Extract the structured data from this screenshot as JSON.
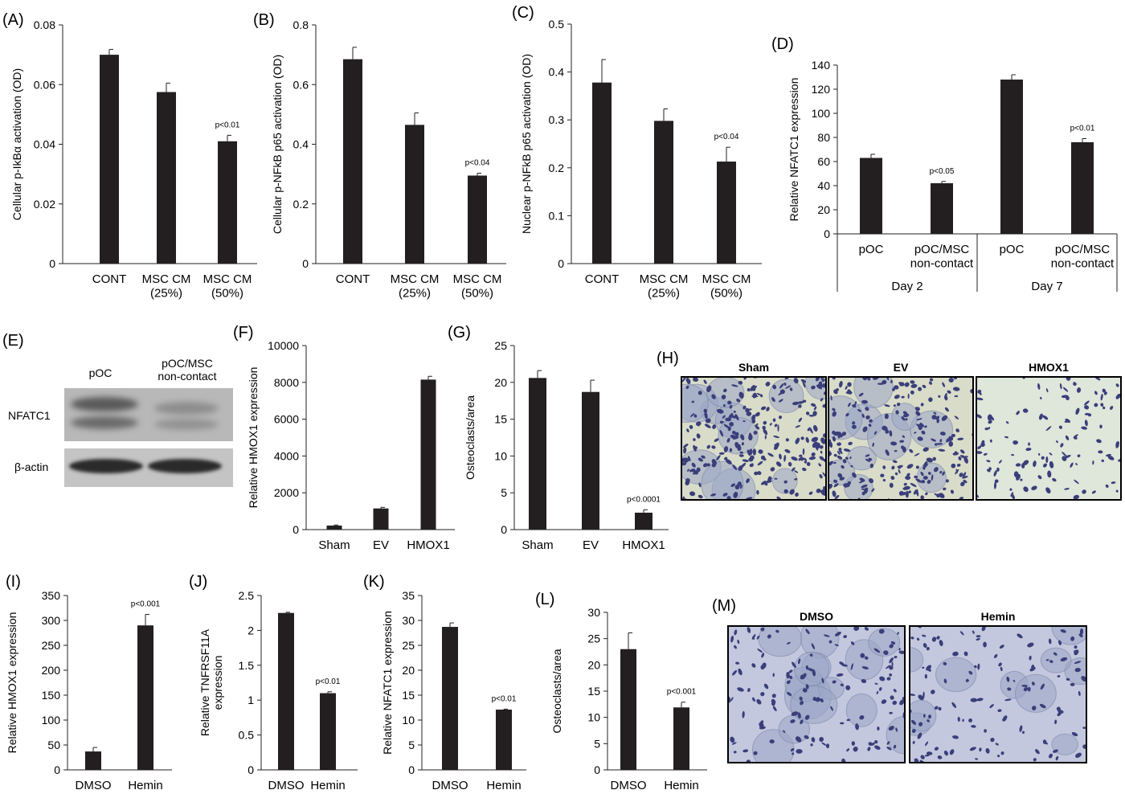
{
  "colors": {
    "bar": "#231f20",
    "axis": "#222222",
    "stain_bg_h": "#d9dcc9",
    "stain_bg_m": "#c3c8de",
    "cell": "#3a3f7a",
    "blot_bg": "#b8b8b8",
    "band": "#2b2b2b"
  },
  "chart_data": [
    {
      "panel": "(A)",
      "type": "bar",
      "ylabel": "Cellular p-IkBα activation (OD)",
      "ylim": [
        0,
        0.08
      ],
      "yticks": [
        "0",
        "0.02",
        "0.04",
        "0.06",
        "0.08"
      ],
      "categories": [
        "CONT",
        "MSC CM\n(25%)",
        "MSC CM\n(50%)"
      ],
      "values": [
        0.07,
        0.0575,
        0.041
      ],
      "errors": [
        0.0018,
        0.003,
        0.002
      ],
      "annotations": [
        {
          "index": 2,
          "text": "p<0.01"
        }
      ]
    },
    {
      "panel": "(B)",
      "type": "bar",
      "ylabel": "Cellular p-NFkB p65 activation (OD)",
      "ylim": [
        0,
        0.8
      ],
      "yticks": [
        "0",
        "0.2",
        "0.4",
        "0.6",
        "0.8"
      ],
      "categories": [
        "CONT",
        "MSC CM\n(25%)",
        "MSC CM\n(50%)"
      ],
      "values": [
        0.685,
        0.465,
        0.295
      ],
      "errors": [
        0.04,
        0.04,
        0.008
      ],
      "annotations": [
        {
          "index": 2,
          "text": "p<0.04"
        }
      ]
    },
    {
      "panel": "(C)",
      "type": "bar",
      "ylabel": "Nuclear p-NFkB p65 activation (OD)",
      "ylim": [
        0,
        0.5
      ],
      "yticks": [
        "0",
        "0.1",
        "0.2",
        "0.3",
        "0.4",
        "0.5"
      ],
      "categories": [
        "CONT",
        "MSC CM\n(25%)",
        "MSC CM\n(50%)"
      ],
      "values": [
        0.378,
        0.298,
        0.213
      ],
      "errors": [
        0.048,
        0.025,
        0.03
      ],
      "annotations": [
        {
          "index": 2,
          "text": "p<0.04"
        }
      ]
    },
    {
      "panel": "(D)",
      "type": "bar",
      "ylabel": "Relative NFATC1 expression",
      "ylim": [
        0,
        140
      ],
      "yticks": [
        "0",
        "20",
        "40",
        "60",
        "80",
        "100",
        "120",
        "140"
      ],
      "categories": [
        "pOC",
        "pOC/MSC\nnon-contact",
        "pOC",
        "pOC/MSC\nnon-contact"
      ],
      "groups": [
        "Day 2",
        "Day 7"
      ],
      "values": [
        63,
        42,
        128,
        76
      ],
      "errors": [
        3,
        1.5,
        4,
        3
      ],
      "annotations": [
        {
          "index": 1,
          "text": "p<0.05"
        },
        {
          "index": 3,
          "text": "p<0.01"
        }
      ]
    },
    {
      "panel": "(F)",
      "type": "bar",
      "ylabel": "Relative HMOX1 expression",
      "ylim": [
        0,
        10000
      ],
      "yticks": [
        "0",
        "2000",
        "4000",
        "6000",
        "8000",
        "10000"
      ],
      "categories": [
        "Sham",
        "EV",
        "HMOX1"
      ],
      "values": [
        220,
        1150,
        8150
      ],
      "errors": [
        30,
        60,
        180
      ],
      "annotations": []
    },
    {
      "panel": "(G)",
      "type": "bar",
      "ylabel": "Osteoclasts/area",
      "ylim": [
        0,
        25
      ],
      "yticks": [
        "0",
        "5",
        "10",
        "15",
        "20",
        "25"
      ],
      "categories": [
        "Sham",
        "EV",
        "HMOX1"
      ],
      "values": [
        20.6,
        18.7,
        2.3
      ],
      "errors": [
        1.0,
        1.6,
        0.4
      ],
      "annotations": [
        {
          "index": 2,
          "text": "p<0.0001"
        }
      ]
    },
    {
      "panel": "(I)",
      "type": "bar",
      "ylabel": "Relative HMOX1 expression",
      "ylim": [
        0,
        350
      ],
      "yticks": [
        "0",
        "50",
        "100",
        "150",
        "200",
        "250",
        "300",
        "350"
      ],
      "categories": [
        "DMSO",
        "Hemin"
      ],
      "values": [
        37,
        290
      ],
      "errors": [
        8,
        22
      ],
      "annotations": [
        {
          "index": 1,
          "text": "p<0.001"
        }
      ]
    },
    {
      "panel": "(J)",
      "type": "bar",
      "ylabel": "Relative TNFRSF11A\nexpression",
      "ylim": [
        0,
        2.5
      ],
      "yticks": [
        "0",
        "0.5",
        "1",
        "1.5",
        "2",
        "2.5"
      ],
      "categories": [
        "DMSO",
        "Hemin"
      ],
      "values": [
        2.25,
        1.1
      ],
      "errors": [
        0.01,
        0.02
      ],
      "annotations": [
        {
          "index": 1,
          "text": "p<0.01"
        }
      ]
    },
    {
      "panel": "(K)",
      "type": "bar",
      "ylabel": "Relative NFATC1 expression",
      "ylim": [
        0,
        35
      ],
      "yticks": [
        "0",
        "5",
        "10",
        "15",
        "20",
        "25",
        "30",
        "35"
      ],
      "categories": [
        "DMSO",
        "Hemin"
      ],
      "values": [
        28.7,
        12.1
      ],
      "errors": [
        0.8,
        0.1
      ],
      "annotations": [
        {
          "index": 1,
          "text": "p<0.01"
        }
      ]
    },
    {
      "panel": "(L)",
      "type": "bar",
      "ylabel": "Osteoclasts/area",
      "ylim": [
        0,
        30
      ],
      "yticks": [
        "0",
        "5",
        "10",
        "15",
        "20",
        "25",
        "30"
      ],
      "categories": [
        "DMSO",
        "Hemin"
      ],
      "values": [
        23.0,
        11.9
      ],
      "errors": [
        3.1,
        1.0
      ],
      "annotations": [
        {
          "index": 1,
          "text": "p<0.001"
        }
      ]
    }
  ],
  "blot": {
    "panel": "(E)",
    "lane_labels": [
      "pOC",
      "pOC/MSC\nnon-contact"
    ],
    "row_labels": [
      "NFATC1",
      "β-actin"
    ]
  },
  "images_h": {
    "panel": "(H)",
    "titles": [
      "Sham",
      "EV",
      "HMOX1"
    ]
  },
  "images_m": {
    "panel": "(M)",
    "titles": [
      "DMSO",
      "Hemin"
    ]
  }
}
